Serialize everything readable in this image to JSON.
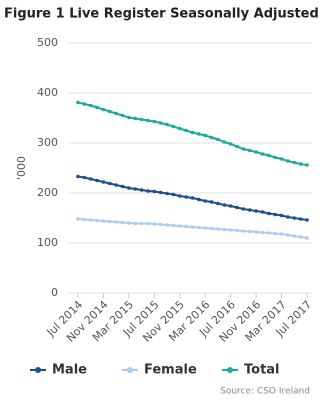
{
  "chart_data": {
    "type": "line",
    "title": "Figure 1 Live Register Seasonally Adjusted",
    "y_label": "'000",
    "source": "Source: CSO Ireland",
    "categories": [
      "Jul 2014",
      null,
      null,
      null,
      "Nov 2014",
      null,
      null,
      null,
      "Mar 2015",
      null,
      null,
      null,
      "Jul 2015",
      null,
      null,
      null,
      "Nov 2015",
      null,
      null,
      null,
      "Mar 2016",
      null,
      null,
      null,
      "Jul 2016",
      null,
      null,
      null,
      "Nov 2016",
      null,
      null,
      null,
      "Mar 2017",
      null,
      null,
      null,
      "Jul 2017"
    ],
    "series": [
      {
        "name": "Male",
        "color": "#1f4e8c",
        "values": [
          233,
          231,
          228,
          225,
          222,
          219,
          216,
          213,
          210,
          208,
          206,
          204,
          203,
          201,
          199,
          197,
          194,
          192,
          190,
          187,
          184,
          182,
          179,
          176,
          174,
          171,
          168,
          166,
          164,
          162,
          159,
          157,
          155,
          152,
          150,
          148,
          146
        ]
      },
      {
        "name": "Female",
        "color": "#a8cdf0",
        "values": [
          148,
          147,
          146,
          145,
          144,
          143,
          142,
          141,
          140,
          139,
          139,
          139,
          138,
          137,
          136,
          135,
          134,
          133,
          132,
          131,
          130,
          129,
          128,
          127,
          126,
          125,
          124,
          123,
          122,
          121,
          120,
          119,
          118,
          116,
          114,
          112,
          110
        ]
      },
      {
        "name": "Total",
        "color": "#1aab9b",
        "values": [
          381,
          378,
          375,
          371,
          367,
          363,
          359,
          355,
          351,
          349,
          347,
          345,
          343,
          340,
          337,
          333,
          329,
          325,
          321,
          318,
          315,
          311,
          307,
          302,
          298,
          293,
          288,
          285,
          282,
          278,
          275,
          271,
          268,
          264,
          261,
          258,
          256
        ]
      }
    ],
    "ylim": [
      0,
      500
    ],
    "yticks": [
      0,
      100,
      200,
      300,
      400,
      500
    ],
    "grid": true
  }
}
